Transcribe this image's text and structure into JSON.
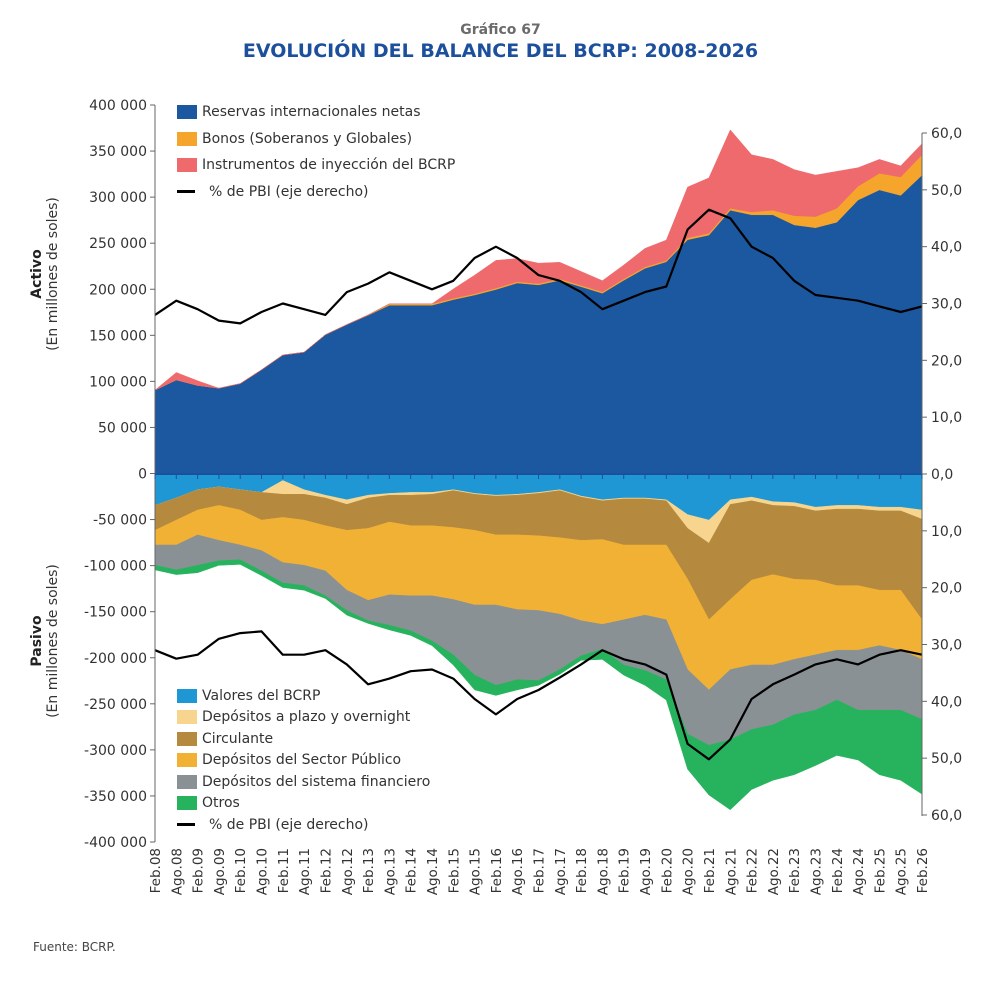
{
  "header": {
    "number": "Gráfico 67",
    "title": "EVOLUCIÓN DEL BALANCE DEL BCRP: 2008-2026"
  },
  "source": "Fuente: BCRP.",
  "chart_data": {
    "type": "area",
    "subtype": "stacked",
    "x": [
      "Feb.08",
      "Ago.08",
      "Feb.09",
      "Ago.09",
      "Feb.10",
      "Ago.10",
      "Feb.11",
      "Ago.11",
      "Feb.12",
      "Ago.12",
      "Feb.13",
      "Ago.13",
      "Feb.14",
      "Ago.14",
      "Feb.15",
      "Ago.15",
      "Feb.16",
      "Ago.16",
      "Feb.17",
      "Ago.17",
      "Feb.18",
      "Ago.18",
      "Feb.19",
      "Ago.19",
      "Feb.20",
      "Ago.20",
      "Feb.21",
      "Ago.21",
      "Feb.22",
      "Ago.22",
      "Feb.23",
      "Ago.23",
      "Feb.24",
      "Ago.24",
      "Feb.25",
      "Ago.25",
      "Feb.26"
    ],
    "left_axis": {
      "ticks": [
        "400 000",
        "350 000",
        "300 000",
        "250 000",
        "200 000",
        "150 000",
        "100 000",
        "50 000",
        "0",
        "-50 000",
        "-100 000",
        "-150 000",
        "-200 000",
        "-250 000",
        "-300 000",
        "-350 000",
        "-400 000"
      ],
      "ylim": [
        -400000,
        400000
      ]
    },
    "right_axis_top": {
      "ticks": [
        "60,0",
        "50,0",
        "40,0",
        "30,0",
        "20,0",
        "10,0",
        "0,0"
      ],
      "ylim": [
        0,
        60
      ]
    },
    "right_axis_bottom": {
      "ticks": [
        "10,0",
        "20,0",
        "30,0",
        "40,0",
        "50,0",
        "60,0"
      ],
      "ylim": [
        0,
        60
      ],
      "inverted": true
    },
    "activo": {
      "ylabel": "Activo",
      "ylabel_sub": "(En millones de soles)",
      "legend_position": "top-left",
      "series": [
        {
          "name": "Reservas internacionales netas",
          "color": "#1c58a0",
          "values": [
            91000,
            102000,
            96000,
            93000,
            98000,
            113000,
            129000,
            132000,
            151000,
            162000,
            172000,
            183000,
            183000,
            183000,
            189000,
            194000,
            200000,
            207000,
            205000,
            210000,
            203000,
            196000,
            210000,
            223000,
            230000,
            254000,
            259000,
            286000,
            281000,
            281000,
            270000,
            267000,
            273000,
            297000,
            308000,
            302000,
            324000
          ]
        },
        {
          "name": "Bonos (Soberanos y Globales)",
          "color": "#f5a52c",
          "values": [
            0,
            0,
            0,
            0,
            0,
            0,
            0,
            0,
            0,
            0,
            500,
            1500,
            1500,
            1500,
            1500,
            1500,
            1500,
            1500,
            1500,
            1500,
            1500,
            1500,
            1500,
            1500,
            1500,
            2000,
            2000,
            2000,
            3000,
            5000,
            10000,
            12000,
            15000,
            15000,
            18000,
            20000,
            22000
          ]
        },
        {
          "name": "Instrumentos de inyección del BCRP",
          "color": "#ef6a6c",
          "values": [
            0,
            8000,
            5000,
            0,
            0,
            0,
            0,
            0,
            0,
            0,
            0,
            0,
            0,
            0,
            10000,
            20000,
            30000,
            25000,
            22000,
            18000,
            15000,
            12000,
            15000,
            20000,
            22000,
            55000,
            60000,
            85000,
            62000,
            55000,
            50000,
            45000,
            40000,
            20000,
            15000,
            12000,
            12000
          ]
        }
      ],
      "pbi_line": {
        "name": "% de PBI (eje derecho)",
        "values": [
          28,
          30.5,
          29,
          27,
          26.5,
          28.5,
          30,
          29,
          28,
          32,
          33.5,
          35.5,
          34,
          32.5,
          34,
          38,
          40,
          38,
          35,
          34,
          32,
          29,
          30.5,
          32,
          33,
          43,
          46.5,
          45,
          40,
          38,
          34,
          31.5,
          31,
          30.5,
          29.5,
          28.5,
          29.5
        ]
      }
    },
    "pasivo": {
      "ylabel": "Pasivo",
      "ylabel_sub": "(En millones de soles)",
      "legend_position": "bottom-left",
      "series": [
        {
          "name": "Valores del BCRP",
          "color": "#1f97d4",
          "values": [
            34000,
            26000,
            17000,
            14000,
            17000,
            20000,
            7000,
            17000,
            23000,
            28000,
            23000,
            21000,
            20000,
            20000,
            17000,
            21000,
            23000,
            22000,
            20000,
            17000,
            24000,
            28000,
            26000,
            26000,
            28000,
            44000,
            50000,
            28000,
            25000,
            30000,
            31000,
            36000,
            34000,
            34000,
            36000,
            36000,
            39000
          ]
        },
        {
          "name": "Depósitos a plazo y overnight",
          "color": "#f7d58f",
          "values": [
            0,
            0,
            0,
            0,
            0,
            0,
            15000,
            5000,
            3000,
            5000,
            3000,
            2000,
            3000,
            2000,
            1000,
            1000,
            1000,
            1000,
            1000,
            1000,
            1000,
            1000,
            1000,
            1000,
            1000,
            15000,
            25000,
            5000,
            4000,
            4000,
            4000,
            4000,
            4000,
            4000,
            4000,
            4000,
            10000
          ]
        },
        {
          "name": "Circulante",
          "color": "#b58a3e",
          "values": [
            27000,
            24000,
            22000,
            20000,
            22000,
            30000,
            25000,
            28000,
            30000,
            28000,
            33000,
            29000,
            33000,
            34000,
            40000,
            39000,
            42000,
            43000,
            46000,
            51000,
            47000,
            42000,
            50000,
            50000,
            48000,
            55000,
            83000,
            103000,
            86000,
            75000,
            79000,
            75000,
            83000,
            83000,
            86000,
            86000,
            109000
          ]
        },
        {
          "name": "Depósitos del Sector Público",
          "color": "#f1b134",
          "values": [
            16000,
            27000,
            27000,
            38000,
            38000,
            33000,
            49000,
            49000,
            49000,
            65000,
            78000,
            79000,
            76000,
            76000,
            78000,
            81000,
            76000,
            81000,
            81000,
            83000,
            87000,
            92000,
            81000,
            76000,
            81000,
            98000,
            76000,
            76000,
            92000,
            98000,
            87000,
            81000,
            70000,
            70000,
            60000,
            65000,
            43000
          ]
        },
        {
          "name": "Depósitos del sistema financiero",
          "color": "#8a9194",
          "values": [
            22000,
            27000,
            33000,
            22000,
            16000,
            22000,
            22000,
            22000,
            27000,
            22000,
            22000,
            33000,
            38000,
            49000,
            60000,
            76000,
            87000,
            76000,
            76000,
            60000,
            38000,
            27000,
            49000,
            60000,
            65000,
            70000,
            60000,
            76000,
            70000,
            65000,
            60000,
            60000,
            54000,
            65000,
            70000,
            65000,
            65000
          ]
        },
        {
          "name": "Otros",
          "color": "#27b35e",
          "values": [
            5000,
            5000,
            8000,
            5000,
            5000,
            5000,
            5000,
            5000,
            3000,
            5000,
            3000,
            5000,
            5000,
            5000,
            11000,
            16000,
            11000,
            11000,
            5000,
            5000,
            5000,
            11000,
            11000,
            16000,
            22000,
            38000,
            54000,
            76000,
            65000,
            60000,
            65000,
            60000,
            60000,
            54000,
            70000,
            76000,
            81000
          ]
        }
      ],
      "pbi_line": {
        "name": "% de PBI (eje derecho)",
        "values": [
          31,
          32.5,
          31.8,
          29,
          28,
          27.7,
          31.8,
          31.8,
          31,
          33.5,
          37,
          36,
          34.7,
          34.4,
          36,
          39.6,
          42.3,
          39.6,
          38,
          35.8,
          33.5,
          31,
          32.6,
          33.5,
          35.3,
          47.5,
          50.2,
          46.7,
          39.6,
          37,
          35.3,
          33.5,
          32.6,
          33.5,
          31.8,
          31,
          31.8
        ]
      }
    }
  }
}
